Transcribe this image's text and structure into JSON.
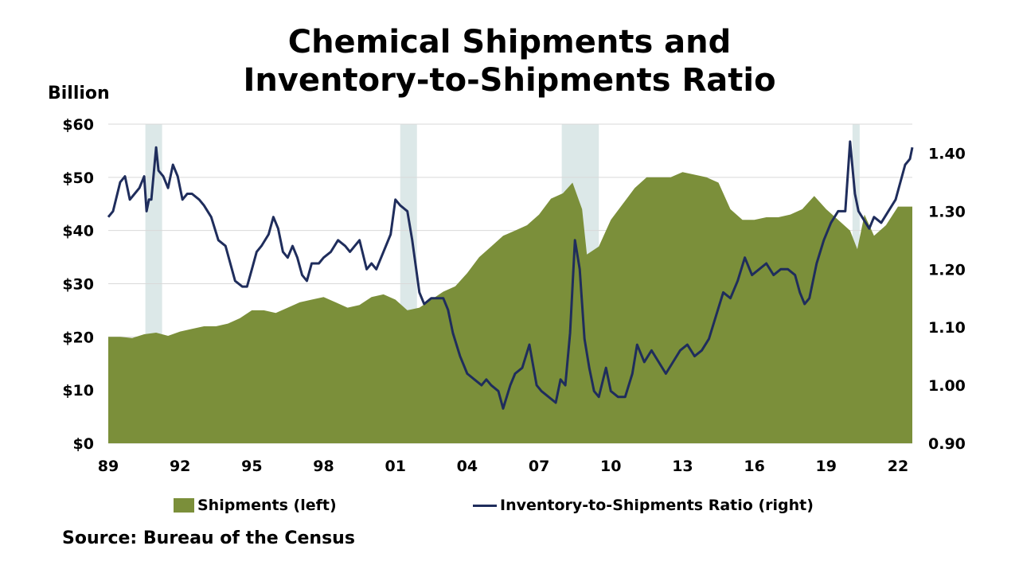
{
  "chart_data": {
    "type": "area",
    "title": "Chemical Shipments and Inventory-to-Shipments Ratio",
    "title_lines": [
      "Chemical Shipments and",
      "Inventory-to-Shipments Ratio"
    ],
    "left_axis_unit": "Billion",
    "source": "Source: Bureau of the Census",
    "x_tick_labels": [
      "89",
      "92",
      "95",
      "98",
      "01",
      "04",
      "07",
      "10",
      "13",
      "16",
      "19",
      "22"
    ],
    "x_tick_years": [
      1989,
      1992,
      1995,
      1998,
      2001,
      2004,
      2007,
      2010,
      2013,
      2016,
      2019,
      2022
    ],
    "xlim": [
      1989,
      2022.6
    ],
    "y_left": {
      "ylim": [
        0,
        60
      ],
      "ticks": [
        0,
        10,
        20,
        30,
        40,
        50,
        60
      ],
      "tick_labels": [
        "$0",
        "$10",
        "$20",
        "$30",
        "$40",
        "$50",
        "$60"
      ]
    },
    "y_right": {
      "ylim": [
        0.9,
        1.45
      ],
      "ticks": [
        0.9,
        1.0,
        1.1,
        1.2,
        1.3,
        1.4
      ],
      "tick_labels": [
        "0.90",
        "1.00",
        "1.10",
        "1.20",
        "1.30",
        "1.40"
      ]
    },
    "grid": "horizontal",
    "legend_position": "bottom",
    "recessions": [
      [
        1990.55,
        1991.25
      ],
      [
        2001.2,
        2001.9
      ],
      [
        2007.95,
        2009.5
      ],
      [
        2020.1,
        2020.4
      ]
    ],
    "colors": {
      "shipments": "#7b8f3a",
      "ratio": "#1f2d5c",
      "recession": "#dce8e8",
      "grid": "#d9d9d9"
    },
    "series": [
      {
        "name": "Shipments (left)",
        "axis": "left",
        "type": "area",
        "x": [
          1989.0,
          1989.5,
          1990.0,
          1990.5,
          1991.0,
          1991.5,
          1992.0,
          1992.5,
          1993.0,
          1993.5,
          1994.0,
          1994.5,
          1995.0,
          1995.5,
          1996.0,
          1996.5,
          1997.0,
          1997.5,
          1998.0,
          1998.5,
          1999.0,
          1999.5,
          2000.0,
          2000.5,
          2001.0,
          2001.5,
          2002.0,
          2002.5,
          2003.0,
          2003.5,
          2004.0,
          2004.5,
          2005.0,
          2005.5,
          2006.0,
          2006.5,
          2007.0,
          2007.5,
          2008.0,
          2008.4,
          2008.8,
          2009.0,
          2009.5,
          2010.0,
          2010.5,
          2011.0,
          2011.5,
          2012.0,
          2012.5,
          2013.0,
          2013.5,
          2014.0,
          2014.5,
          2015.0,
          2015.5,
          2016.0,
          2016.5,
          2017.0,
          2017.5,
          2018.0,
          2018.5,
          2019.0,
          2019.5,
          2020.0,
          2020.3,
          2020.6,
          2021.0,
          2021.5,
          2022.0,
          2022.6
        ],
        "values": [
          20,
          20,
          19.8,
          20.5,
          20.8,
          20.2,
          21,
          21.5,
          22,
          22,
          22.5,
          23.5,
          25,
          25,
          24.5,
          25.5,
          26.5,
          27,
          27.5,
          26.5,
          25.5,
          26,
          27.5,
          28,
          27,
          25,
          25.5,
          27,
          28.5,
          29.5,
          32,
          35,
          37,
          39,
          40,
          41,
          43,
          46,
          47,
          49,
          44,
          35.5,
          37,
          42,
          45,
          48,
          50,
          50,
          50,
          51,
          50.5,
          50,
          49,
          44,
          42,
          42,
          42.5,
          42.5,
          43,
          44,
          46.5,
          44,
          42,
          40,
          36.5,
          43,
          39,
          41,
          44.5,
          44.5
        ]
      },
      {
        "name": "Inventory-to-Shipments Ratio (right)",
        "axis": "right",
        "type": "line",
        "x": [
          1989.0,
          1989.2,
          1989.5,
          1989.7,
          1989.9,
          1990.1,
          1990.3,
          1990.5,
          1990.6,
          1990.7,
          1990.8,
          1991.0,
          1991.1,
          1991.3,
          1991.5,
          1991.7,
          1991.9,
          1992.1,
          1992.3,
          1992.5,
          1992.8,
          1993.0,
          1993.3,
          1993.6,
          1993.9,
          1994.1,
          1994.3,
          1994.6,
          1994.8,
          1995.0,
          1995.2,
          1995.4,
          1995.7,
          1995.9,
          1996.1,
          1996.3,
          1996.5,
          1996.7,
          1996.9,
          1997.1,
          1997.3,
          1997.5,
          1997.8,
          1998.0,
          1998.3,
          1998.6,
          1998.9,
          1999.1,
          1999.3,
          1999.5,
          1999.8,
          2000.0,
          2000.2,
          2000.5,
          2000.8,
          2001.0,
          2001.2,
          2001.5,
          2001.7,
          2002.0,
          2002.2,
          2002.5,
          2002.8,
          2003.0,
          2003.2,
          2003.4,
          2003.7,
          2004.0,
          2004.3,
          2004.6,
          2004.8,
          2005.0,
          2005.3,
          2005.5,
          2005.8,
          2006.0,
          2006.3,
          2006.6,
          2006.9,
          2007.1,
          2007.4,
          2007.7,
          2007.9,
          2008.1,
          2008.3,
          2008.5,
          2008.7,
          2008.9,
          2009.1,
          2009.3,
          2009.5,
          2009.8,
          2010.0,
          2010.3,
          2010.6,
          2010.9,
          2011.1,
          2011.4,
          2011.7,
          2012.0,
          2012.3,
          2012.6,
          2012.9,
          2013.2,
          2013.5,
          2013.8,
          2014.1,
          2014.4,
          2014.7,
          2015.0,
          2015.3,
          2015.6,
          2015.9,
          2016.2,
          2016.5,
          2016.8,
          2017.1,
          2017.4,
          2017.7,
          2017.9,
          2018.1,
          2018.3,
          2018.6,
          2018.9,
          2019.2,
          2019.5,
          2019.8,
          2020.0,
          2020.2,
          2020.35,
          2020.5,
          2020.8,
          2021.0,
          2021.3,
          2021.6,
          2021.9,
          2022.1,
          2022.3,
          2022.5,
          2022.6
        ],
        "values": [
          1.29,
          1.3,
          1.35,
          1.36,
          1.32,
          1.33,
          1.34,
          1.36,
          1.3,
          1.32,
          1.32,
          1.41,
          1.37,
          1.36,
          1.34,
          1.38,
          1.36,
          1.32,
          1.33,
          1.33,
          1.32,
          1.31,
          1.29,
          1.25,
          1.24,
          1.21,
          1.18,
          1.17,
          1.17,
          1.2,
          1.23,
          1.24,
          1.26,
          1.29,
          1.27,
          1.23,
          1.22,
          1.24,
          1.22,
          1.19,
          1.18,
          1.21,
          1.21,
          1.22,
          1.23,
          1.25,
          1.24,
          1.23,
          1.24,
          1.25,
          1.2,
          1.21,
          1.2,
          1.23,
          1.26,
          1.32,
          1.31,
          1.3,
          1.25,
          1.16,
          1.14,
          1.15,
          1.15,
          1.15,
          1.13,
          1.09,
          1.05,
          1.02,
          1.01,
          1.0,
          1.01,
          1.0,
          0.99,
          0.96,
          1.0,
          1.02,
          1.03,
          1.07,
          1.0,
          0.99,
          0.98,
          0.97,
          1.01,
          1.0,
          1.09,
          1.25,
          1.2,
          1.08,
          1.03,
          0.99,
          0.98,
          1.03,
          0.99,
          0.98,
          0.98,
          1.02,
          1.07,
          1.04,
          1.06,
          1.04,
          1.02,
          1.04,
          1.06,
          1.07,
          1.05,
          1.06,
          1.08,
          1.12,
          1.16,
          1.15,
          1.18,
          1.22,
          1.19,
          1.2,
          1.21,
          1.19,
          1.2,
          1.2,
          1.19,
          1.16,
          1.14,
          1.15,
          1.21,
          1.25,
          1.28,
          1.3,
          1.3,
          1.42,
          1.33,
          1.3,
          1.29,
          1.27,
          1.29,
          1.28,
          1.3,
          1.32,
          1.35,
          1.38,
          1.39,
          1.41
        ]
      }
    ]
  }
}
